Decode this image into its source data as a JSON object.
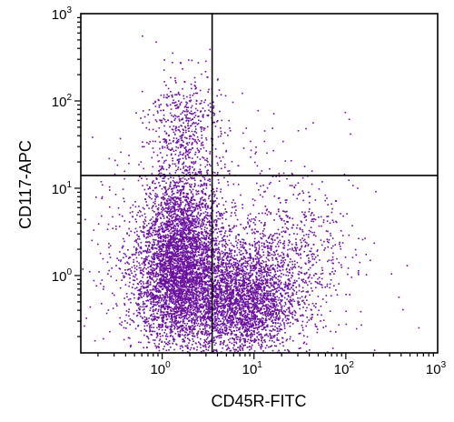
{
  "chart_data": {
    "type": "scatter",
    "title": "",
    "xlabel": "CD45R-FITC",
    "ylabel": "CD117-APC",
    "x_scale": "log",
    "y_scale": "log",
    "xlim": [
      0.13,
      1000
    ],
    "ylim": [
      0.13,
      1000
    ],
    "x_ticks": [
      {
        "base": "10",
        "exp": "0",
        "value": 1
      },
      {
        "base": "10",
        "exp": "1",
        "value": 10
      },
      {
        "base": "10",
        "exp": "2",
        "value": 100
      },
      {
        "base": "10",
        "exp": "3",
        "value": 1000
      }
    ],
    "y_ticks": [
      {
        "base": "10",
        "exp": "0",
        "value": 1
      },
      {
        "base": "10",
        "exp": "1",
        "value": 10
      },
      {
        "base": "10",
        "exp": "2",
        "value": 100
      },
      {
        "base": "10",
        "exp": "3",
        "value": 1000
      }
    ],
    "quadrant_gates": {
      "x": 3.5,
      "y": 14
    },
    "grid": false,
    "legend": "none",
    "point_color": "#6a0f9e",
    "populations": [
      {
        "center": [
          1.5,
          0.85
        ],
        "spread": [
          0.42,
          0.62
        ],
        "count": 3200
      },
      {
        "center": [
          7.5,
          0.5
        ],
        "spread": [
          0.48,
          0.55
        ],
        "count": 2600
      },
      {
        "center": [
          1.6,
          4.0
        ],
        "spread": [
          0.35,
          0.55
        ],
        "count": 1200
      },
      {
        "center": [
          1.7,
          50
        ],
        "spread": [
          0.32,
          0.55
        ],
        "count": 520
      },
      {
        "center": [
          25,
          1.8
        ],
        "spread": [
          0.55,
          0.6
        ],
        "count": 450
      },
      {
        "center": [
          4,
          2
        ],
        "spread": [
          1.2,
          1.1
        ],
        "count": 900
      }
    ]
  }
}
